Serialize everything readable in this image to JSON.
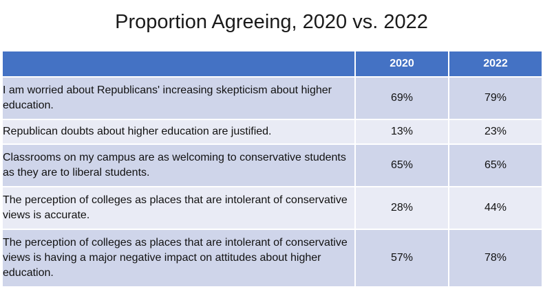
{
  "chart_data": {
    "type": "table",
    "title": "Proportion Agreeing, 2020 vs. 2022",
    "columns": [
      "",
      "2020",
      "2022"
    ],
    "rows": [
      {
        "statement": "I am worried about Republicans' increasing skepticism about higher education.",
        "v2020": "69%",
        "v2022": "79%"
      },
      {
        "statement": "Republican doubts about higher education are justified.",
        "v2020": "13%",
        "v2022": "23%"
      },
      {
        "statement": "Classrooms on my campus are as welcoming to conservative students as they are to liberal students.",
        "v2020": "65%",
        "v2022": "65%"
      },
      {
        "statement": "The perception of colleges as places that are intolerant of conservative views is accurate.",
        "v2020": "28%",
        "v2022": "44%"
      },
      {
        "statement": "The perception of colleges as places that are intolerant of conservative views is having a major negative impact on attitudes about higher education.",
        "v2020": "57%",
        "v2022": "78%"
      }
    ],
    "header_color": "#4472c4",
    "row_colors": [
      "#cfd5ea",
      "#e9ebf5"
    ]
  }
}
